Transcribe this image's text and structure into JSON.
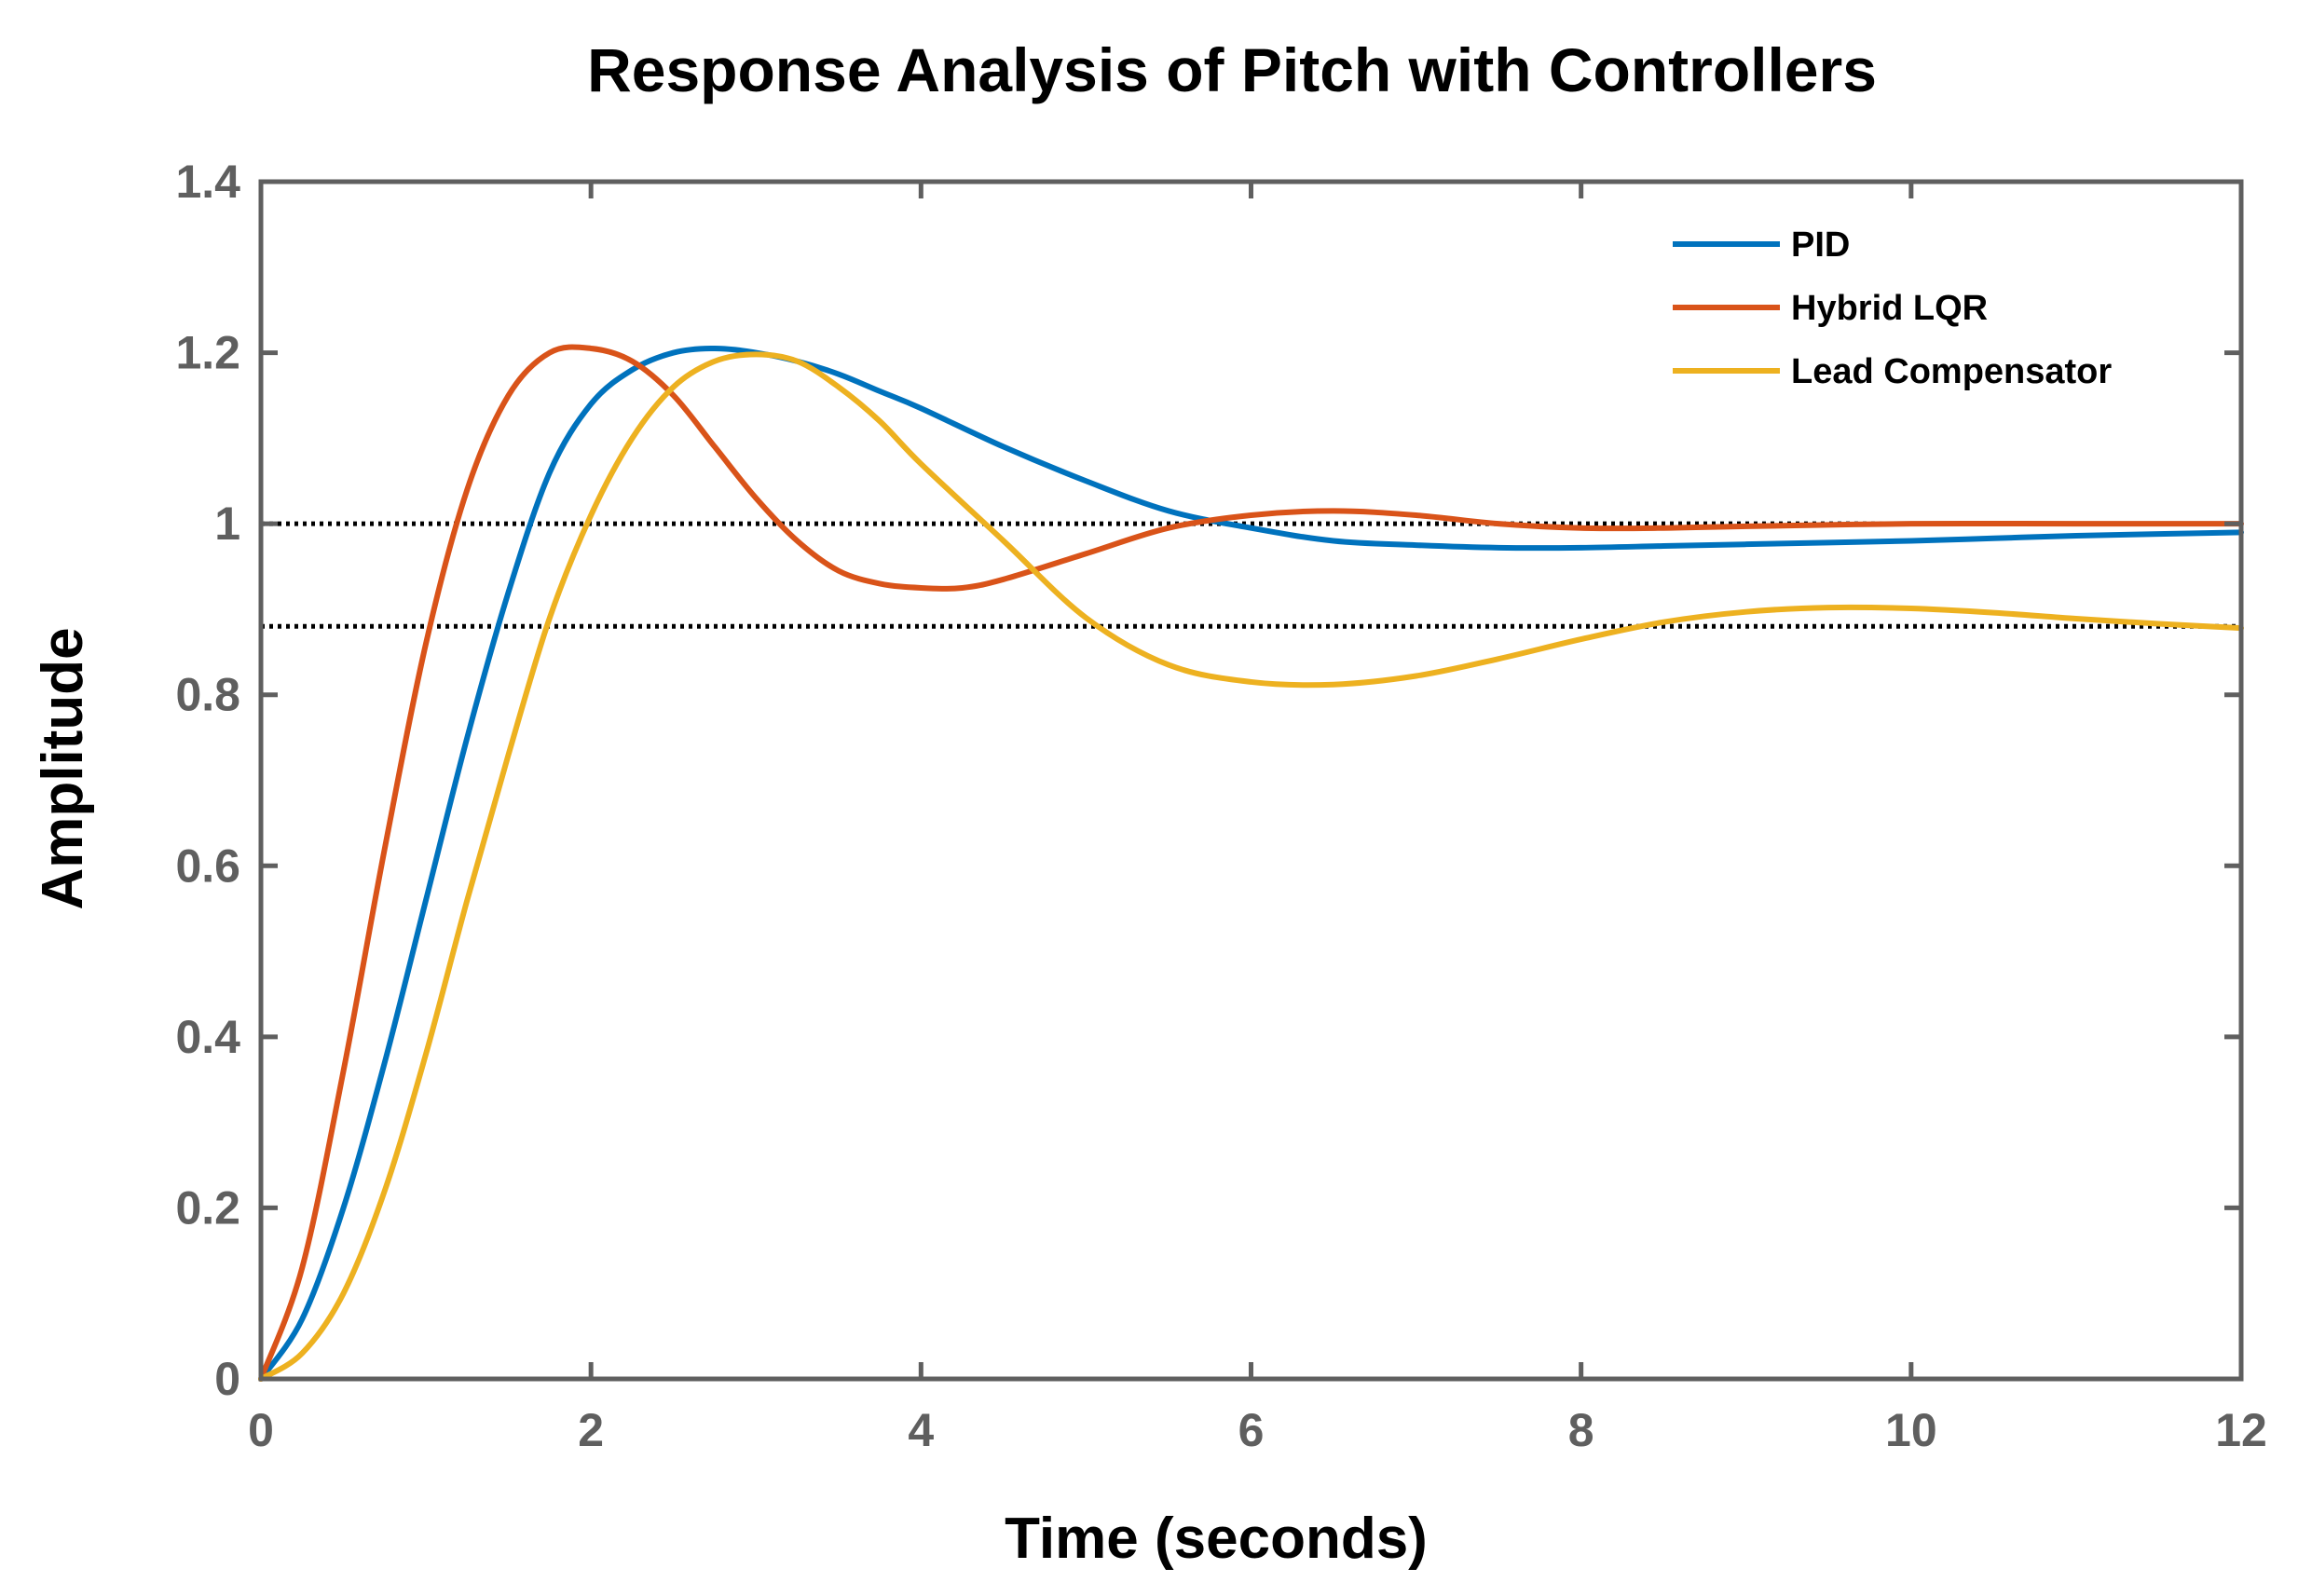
{
  "chart_data": {
    "type": "line",
    "title": "Response Analysis of Pitch with Controllers",
    "xlabel": "Time (seconds)",
    "ylabel": "Amplitude",
    "xlim": [
      0,
      12
    ],
    "ylim": [
      0,
      1.4
    ],
    "xticks": [
      0,
      2,
      4,
      6,
      8,
      10,
      12
    ],
    "yticks": [
      0,
      0.2,
      0.4,
      0.6,
      0.8,
      1,
      1.2,
      1.4
    ],
    "xtick_labels": [
      "0",
      "2",
      "4",
      "6",
      "8",
      "10",
      "12"
    ],
    "ytick_labels": [
      "0",
      "0.2",
      "0.4",
      "0.6",
      "0.8",
      "1",
      "1.2",
      "1.4"
    ],
    "grid": false,
    "legend_position": "top-right",
    "reference_lines": [
      {
        "y": 1.0,
        "style": "dotted",
        "color": "#000000"
      },
      {
        "y": 0.88,
        "style": "dotted",
        "color": "#000000"
      }
    ],
    "series": [
      {
        "name": "PID",
        "color": "#0072BD",
        "x": [
          0,
          0.25,
          0.5,
          0.75,
          1.0,
          1.25,
          1.5,
          1.75,
          2.0,
          2.25,
          2.5,
          2.75,
          3.0,
          3.25,
          3.5,
          3.75,
          4.0,
          4.5,
          5.0,
          5.5,
          6.0,
          6.5,
          7.0,
          7.5,
          8.0,
          8.5,
          9.0,
          9.5,
          10.0,
          10.5,
          11.0,
          11.5,
          12.0
        ],
        "y": [
          0,
          0.07,
          0.2,
          0.37,
          0.56,
          0.75,
          0.92,
          1.06,
          1.14,
          1.18,
          1.2,
          1.205,
          1.2,
          1.19,
          1.175,
          1.155,
          1.135,
          1.09,
          1.05,
          1.015,
          0.995,
          0.98,
          0.975,
          0.972,
          0.972,
          0.974,
          0.976,
          0.978,
          0.98,
          0.983,
          0.986,
          0.988,
          0.99
        ]
      },
      {
        "name": "Hybrid LQR",
        "color": "#D95319",
        "x": [
          0,
          0.25,
          0.5,
          0.75,
          1.0,
          1.25,
          1.5,
          1.75,
          2.0,
          2.25,
          2.5,
          2.75,
          3.0,
          3.25,
          3.5,
          3.75,
          4.0,
          4.25,
          4.5,
          5.0,
          5.5,
          6.0,
          6.5,
          7.0,
          7.5,
          8.0,
          8.5,
          9.0,
          10.0,
          11.0,
          12.0
        ],
        "y": [
          0,
          0.13,
          0.36,
          0.62,
          0.86,
          1.04,
          1.15,
          1.2,
          1.205,
          1.19,
          1.15,
          1.09,
          1.03,
          0.98,
          0.945,
          0.93,
          0.925,
          0.925,
          0.935,
          0.965,
          0.995,
          1.01,
          1.015,
          1.01,
          1.0,
          0.995,
          0.995,
          0.997,
          1.0,
          1.0,
          1.0
        ]
      },
      {
        "name": "Lead Compensator",
        "color": "#EDB120",
        "x": [
          0,
          0.25,
          0.5,
          0.75,
          1.0,
          1.25,
          1.5,
          1.75,
          2.0,
          2.25,
          2.5,
          2.75,
          3.0,
          3.25,
          3.5,
          3.75,
          4.0,
          4.5,
          5.0,
          5.5,
          6.0,
          6.5,
          7.0,
          7.5,
          8.0,
          8.5,
          9.0,
          9.5,
          10.0,
          10.5,
          11.0,
          11.5,
          12.0
        ],
        "y": [
          0,
          0.03,
          0.1,
          0.22,
          0.38,
          0.56,
          0.73,
          0.89,
          1.01,
          1.1,
          1.16,
          1.19,
          1.198,
          1.19,
          1.16,
          1.12,
          1.07,
          0.98,
          0.89,
          0.835,
          0.815,
          0.812,
          0.822,
          0.842,
          0.865,
          0.885,
          0.897,
          0.902,
          0.901,
          0.896,
          0.889,
          0.883,
          0.878
        ]
      }
    ]
  }
}
